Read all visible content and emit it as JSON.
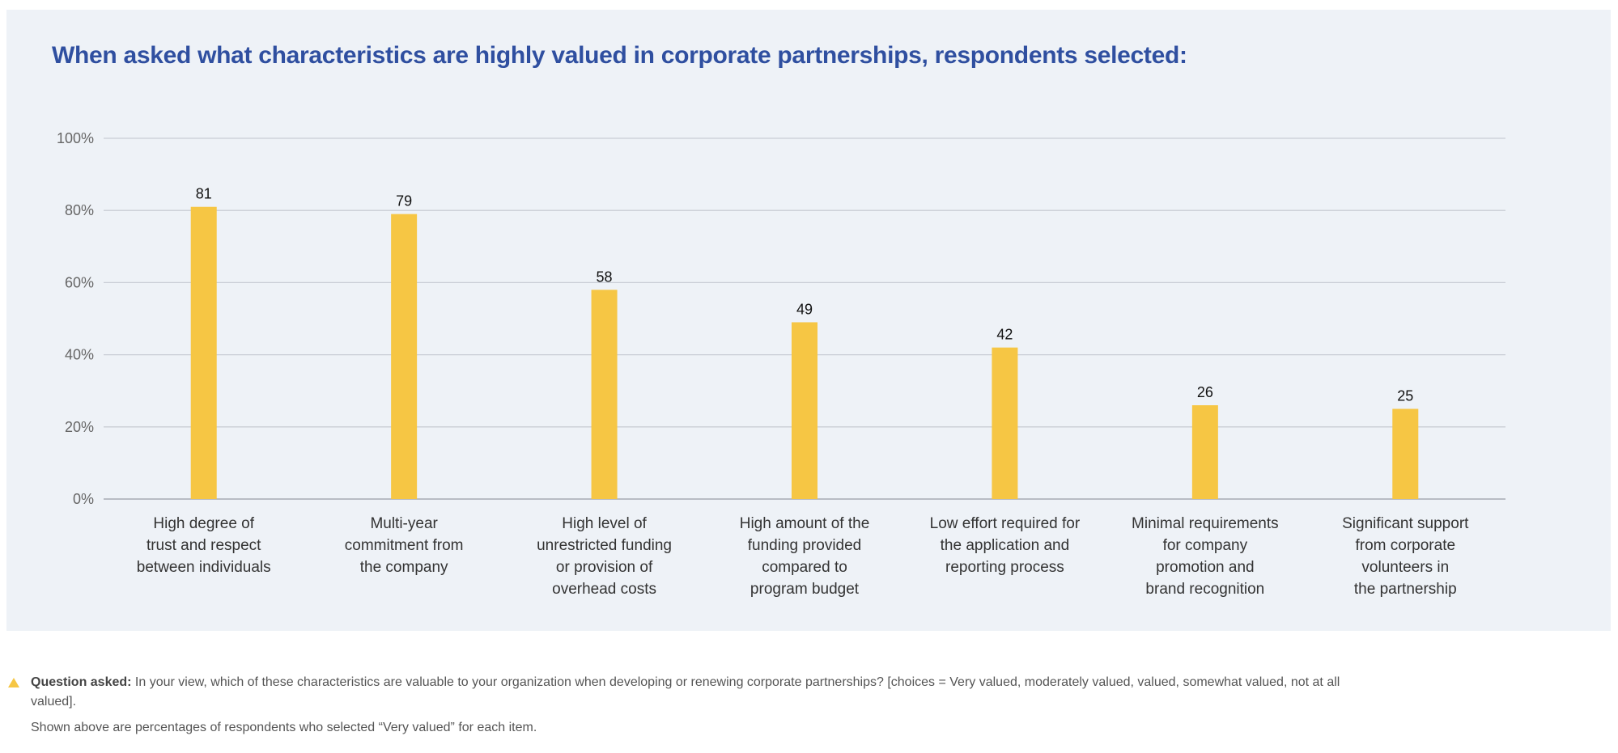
{
  "chart_data": {
    "type": "bar",
    "title": "When asked what characteristics are highly valued in corporate partnerships, respondents selected:",
    "categories": [
      "High degree of trust and respect between individuals",
      "Multi-year commitment from the company",
      "High level of unrestricted funding or provision of overhead costs",
      "High amount of the funding provided compared to program budget",
      "Low effort required for the application and reporting process",
      "Minimal requirements for company promotion and brand recognition",
      "Significant support from corporate volunteers in the partnership"
    ],
    "category_lines": [
      [
        "High degree of",
        "trust and respect",
        "between individuals"
      ],
      [
        "Multi-year",
        "commitment from",
        "the company"
      ],
      [
        "High level of",
        "unrestricted funding",
        "or provision of",
        "overhead costs"
      ],
      [
        "High amount of the",
        "funding provided",
        "compared to",
        "program budget"
      ],
      [
        "Low effort required for",
        "the application and",
        "reporting process"
      ],
      [
        "Minimal requirements",
        "for company",
        "promotion and",
        "brand recognition"
      ],
      [
        "Significant support",
        "from corporate",
        "volunteers in",
        "the partnership"
      ]
    ],
    "values": [
      81,
      79,
      58,
      49,
      42,
      26,
      25
    ],
    "data_labels": [
      "81",
      "79",
      "58",
      "49",
      "42",
      "26",
      "25"
    ],
    "ylim": [
      0,
      100
    ],
    "yticks": [
      "0%",
      "20%",
      "40%",
      "60%",
      "80%",
      "100%"
    ],
    "xlabel": "",
    "ylabel": "",
    "grid": true,
    "colors": {
      "bar": "#f6c644",
      "title": "#2f4fa0",
      "background": "#eef2f7",
      "grid": "#c9cdd5"
    }
  },
  "footnote": {
    "icon": "warning-triangle-icon",
    "question_label": "Question asked:",
    "question_text": " In your view, which of these characteristics are valuable to your organization when developing or renewing corporate partnerships? [choices = Very valued, moderately valued, valued, somewhat valued, not at all valued].",
    "note": "Shown above are percentages of respondents who selected “Very valued” for each item."
  }
}
